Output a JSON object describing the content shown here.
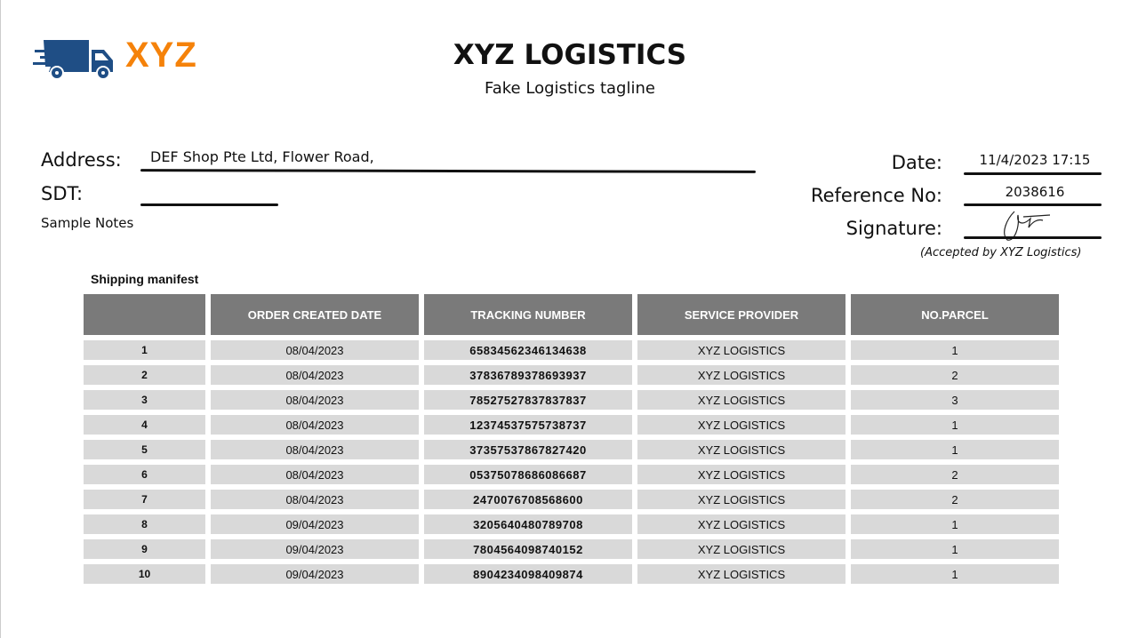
{
  "logo": {
    "text": "XYZ",
    "brand_color": "#1f4e85",
    "accent_color": "#f5820a"
  },
  "header": {
    "title": "XYZ LOGISTICS",
    "tagline": "Fake Logistics tagline"
  },
  "form": {
    "address_label": "Address:",
    "address_value": "DEF Shop Pte Ltd, Flower Road,",
    "sdt_label": "SDT:",
    "sdt_value": "",
    "notes": "Sample Notes",
    "date_label": "Date:",
    "date_value": "11/4/2023 17:15",
    "ref_label": "Reference No:",
    "ref_value": "2038616",
    "signature_label": "Signature:",
    "signature_note": "(Accepted by XYZ Logistics)"
  },
  "manifest": {
    "title": "Shipping manifest",
    "columns": [
      "",
      "ORDER CREATED DATE",
      "TRACKING NUMBER",
      "SERVICE PROVIDER",
      "NO.PARCEL"
    ],
    "rows": [
      [
        "1",
        "08/04/2023",
        "65834562346134638",
        "XYZ LOGISTICS",
        "1"
      ],
      [
        "2",
        "08/04/2023",
        "37836789378693937",
        "XYZ LOGISTICS",
        "2"
      ],
      [
        "3",
        "08/04/2023",
        "78527527837837837",
        "XYZ LOGISTICS",
        "3"
      ],
      [
        "4",
        "08/04/2023",
        "12374537575738737",
        "XYZ LOGISTICS",
        "1"
      ],
      [
        "5",
        "08/04/2023",
        "37357537867827420",
        "XYZ LOGISTICS",
        "1"
      ],
      [
        "6",
        "08/04/2023",
        "05375078686086687",
        "XYZ LOGISTICS",
        "2"
      ],
      [
        "7",
        "08/04/2023",
        "2470076708568600",
        "XYZ LOGISTICS",
        "2"
      ],
      [
        "8",
        "09/04/2023",
        "3205640480789708",
        "XYZ LOGISTICS",
        "1"
      ],
      [
        "9",
        "09/04/2023",
        "7804564098740152",
        "XYZ LOGISTICS",
        "1"
      ],
      [
        "10",
        "09/04/2023",
        "8904234098409874",
        "XYZ LOGISTICS",
        "1"
      ]
    ]
  }
}
